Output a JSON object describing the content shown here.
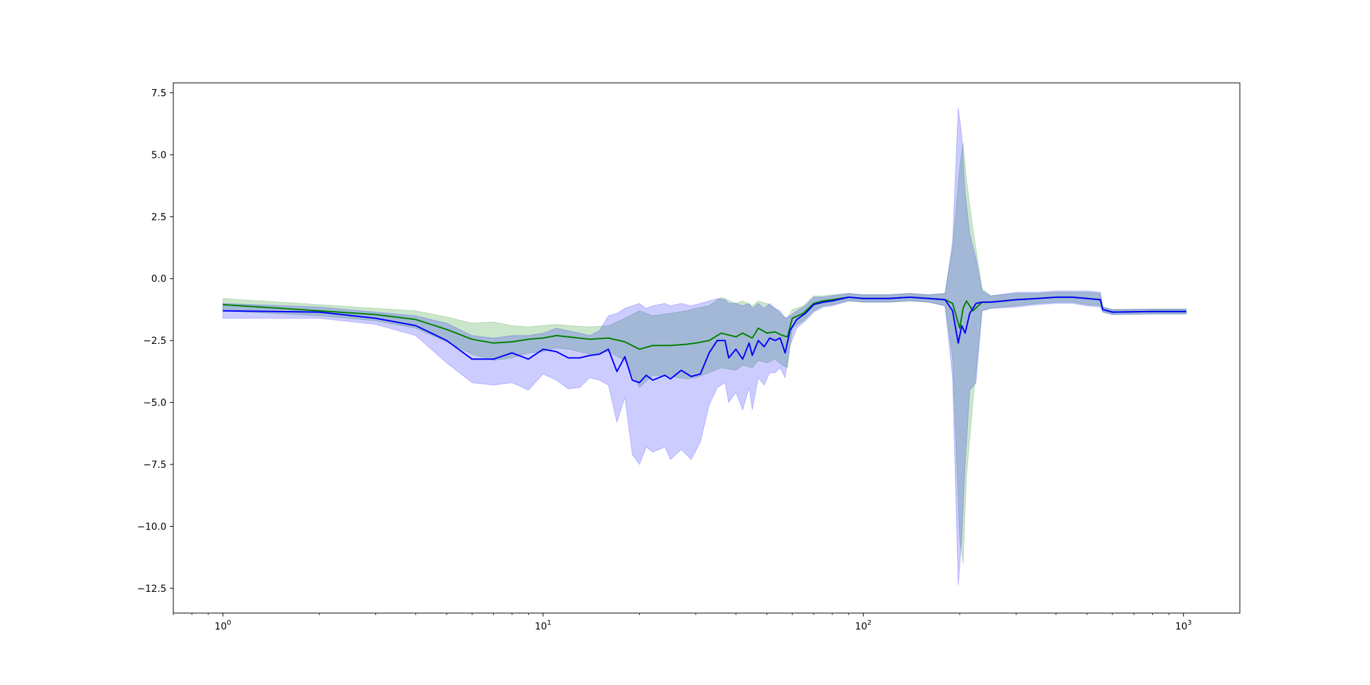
{
  "chart_data": {
    "type": "line",
    "title": "",
    "xlabel": "",
    "ylabel": "",
    "xscale": "log",
    "xlim": [
      0.7,
      1500
    ],
    "ylim": [
      -13.5,
      7.9
    ],
    "grid": false,
    "x_ticks": [
      {
        "base": "10",
        "exp": "0",
        "value": 1
      },
      {
        "base": "10",
        "exp": "1",
        "value": 10
      },
      {
        "base": "10",
        "exp": "2",
        "value": 100
      },
      {
        "base": "10",
        "exp": "3",
        "value": 1000
      }
    ],
    "y_ticks": [
      {
        "label": "7.5",
        "value": 7.5
      },
      {
        "label": "5.0",
        "value": 5.0
      },
      {
        "label": "2.5",
        "value": 2.5
      },
      {
        "label": "0.0",
        "value": 0.0
      },
      {
        "label": "−2.5",
        "value": -2.5
      },
      {
        "label": "−5.0",
        "value": -5.0
      },
      {
        "label": "−7.5",
        "value": -7.5
      },
      {
        "label": "−10.0",
        "value": -10.0
      },
      {
        "label": "−12.5",
        "value": -12.5
      }
    ],
    "series": [
      {
        "color": "#008000",
        "band_color": "#008000",
        "band_opacity": 0.2,
        "points": [
          [
            1,
            -1.05,
            -0.8,
            -1.3
          ],
          [
            2,
            -1.3,
            -1.05,
            -1.5
          ],
          [
            3,
            -1.45,
            -1.2,
            -1.7
          ],
          [
            4,
            -1.65,
            -1.3,
            -2.0
          ],
          [
            5,
            -2.05,
            -1.55,
            -2.55
          ],
          [
            6,
            -2.45,
            -1.8,
            -3.05
          ],
          [
            7,
            -2.6,
            -1.75,
            -3.3
          ],
          [
            8,
            -2.55,
            -1.9,
            -3.2
          ],
          [
            9,
            -2.45,
            -1.95,
            -3.0
          ],
          [
            10,
            -2.4,
            -1.9,
            -2.95
          ],
          [
            11,
            -2.3,
            -1.85,
            -2.8
          ],
          [
            12,
            -2.35,
            -1.9,
            -2.85
          ],
          [
            14,
            -2.45,
            -1.95,
            -3.05
          ],
          [
            16,
            -2.4,
            -1.9,
            -2.95
          ],
          [
            18,
            -2.55,
            -1.6,
            -3.3
          ],
          [
            20,
            -2.85,
            -1.3,
            -4.4
          ],
          [
            22,
            -2.7,
            -1.5,
            -3.9
          ],
          [
            25,
            -2.7,
            -1.4,
            -3.95
          ],
          [
            28,
            -2.65,
            -1.3,
            -4.05
          ],
          [
            30,
            -2.6,
            -1.2,
            -4.0
          ],
          [
            33,
            -2.5,
            -1.1,
            -3.8
          ],
          [
            36,
            -2.2,
            -0.75,
            -3.6
          ],
          [
            40,
            -2.35,
            -1.0,
            -3.7
          ],
          [
            42,
            -2.2,
            -0.9,
            -3.5
          ],
          [
            45,
            -2.4,
            -1.1,
            -3.6
          ],
          [
            47,
            -2.0,
            -0.9,
            -3.3
          ],
          [
            50,
            -2.2,
            -1.0,
            -3.4
          ],
          [
            53,
            -2.15,
            -1.2,
            -3.25
          ],
          [
            56,
            -2.3,
            -1.5,
            -3.5
          ],
          [
            58,
            -2.35,
            -1.6,
            -3.6
          ],
          [
            60,
            -1.6,
            -1.25,
            -2.0
          ],
          [
            65,
            -1.4,
            -1.1,
            -1.7
          ],
          [
            70,
            -1.0,
            -0.7,
            -1.3
          ],
          [
            75,
            -0.9,
            -0.7,
            -1.1
          ],
          [
            80,
            -0.85,
            -0.65,
            -1.05
          ],
          [
            90,
            -0.75,
            -0.6,
            -0.9
          ],
          [
            100,
            -0.8,
            -0.65,
            -0.95
          ],
          [
            120,
            -0.8,
            -0.65,
            -0.95
          ],
          [
            140,
            -0.75,
            -0.6,
            -0.9
          ],
          [
            160,
            -0.8,
            -0.65,
            -0.95
          ],
          [
            180,
            -0.85,
            -0.6,
            -1.1
          ],
          [
            190,
            -1.0,
            1.2,
            -3.2
          ],
          [
            200,
            -2.0,
            4.5,
            -10.5
          ],
          [
            205,
            -1.2,
            5.5,
            -11.5
          ],
          [
            210,
            -0.9,
            4.0,
            -8.0
          ],
          [
            220,
            -1.3,
            2.0,
            -5.0
          ],
          [
            235,
            -0.95,
            -0.4,
            -1.3
          ],
          [
            250,
            -0.95,
            -0.7,
            -1.2
          ],
          [
            300,
            -0.85,
            -0.6,
            -1.1
          ],
          [
            350,
            -0.8,
            -0.6,
            -1.0
          ],
          [
            400,
            -0.75,
            -0.55,
            -0.95
          ],
          [
            450,
            -0.75,
            -0.55,
            -0.95
          ],
          [
            500,
            -0.8,
            -0.55,
            -1.05
          ],
          [
            550,
            -0.85,
            -0.6,
            -1.1
          ],
          [
            560,
            -1.25,
            -1.15,
            -1.35
          ],
          [
            600,
            -1.35,
            -1.25,
            -1.45
          ],
          [
            800,
            -1.33,
            -1.23,
            -1.43
          ],
          [
            1020,
            -1.33,
            -1.23,
            -1.43
          ]
        ]
      },
      {
        "color": "#0000ff",
        "band_color": "#0000ff",
        "band_opacity": 0.2,
        "points": [
          [
            1,
            -1.3,
            -1.0,
            -1.6
          ],
          [
            2,
            -1.35,
            -1.15,
            -1.6
          ],
          [
            3,
            -1.6,
            -1.35,
            -1.85
          ],
          [
            4,
            -1.9,
            -1.5,
            -2.3
          ],
          [
            5,
            -2.5,
            -1.8,
            -3.4
          ],
          [
            6,
            -3.25,
            -2.3,
            -4.2
          ],
          [
            7,
            -3.25,
            -2.4,
            -4.3
          ],
          [
            8,
            -3.0,
            -2.3,
            -4.2
          ],
          [
            9,
            -3.25,
            -2.3,
            -4.5
          ],
          [
            10,
            -2.85,
            -2.2,
            -3.85
          ],
          [
            11,
            -2.95,
            -2.0,
            -4.1
          ],
          [
            12,
            -3.2,
            -2.1,
            -4.45
          ],
          [
            13,
            -3.2,
            -2.2,
            -4.4
          ],
          [
            14,
            -3.1,
            -2.3,
            -4.0
          ],
          [
            15,
            -3.05,
            -2.1,
            -4.1
          ],
          [
            16,
            -2.85,
            -1.5,
            -4.3
          ],
          [
            17,
            -3.75,
            -1.4,
            -5.8
          ],
          [
            18,
            -3.15,
            -1.2,
            -4.8
          ],
          [
            19,
            -4.1,
            -1.1,
            -7.1
          ],
          [
            20,
            -4.2,
            -1.0,
            -7.5
          ],
          [
            21,
            -3.9,
            -1.2,
            -6.8
          ],
          [
            22,
            -4.1,
            -1.1,
            -7.0
          ],
          [
            24,
            -3.9,
            -1.0,
            -6.8
          ],
          [
            25,
            -4.05,
            -1.1,
            -7.3
          ],
          [
            27,
            -3.7,
            -1.0,
            -6.9
          ],
          [
            29,
            -3.95,
            -1.1,
            -7.3
          ],
          [
            31,
            -3.85,
            -1.0,
            -6.6
          ],
          [
            33,
            -3.0,
            -0.9,
            -5.1
          ],
          [
            35,
            -2.5,
            -0.8,
            -4.4
          ],
          [
            37,
            -2.5,
            -0.85,
            -4.2
          ],
          [
            38,
            -3.2,
            -1.0,
            -5.0
          ],
          [
            40,
            -2.85,
            -1.0,
            -4.6
          ],
          [
            42,
            -3.25,
            -1.1,
            -5.3
          ],
          [
            44,
            -2.6,
            -1.0,
            -4.4
          ],
          [
            45,
            -3.1,
            -1.2,
            -5.3
          ],
          [
            47,
            -2.5,
            -1.0,
            -4.0
          ],
          [
            49,
            -2.75,
            -1.2,
            -4.3
          ],
          [
            51,
            -2.4,
            -1.0,
            -3.8
          ],
          [
            53,
            -2.5,
            -1.2,
            -3.8
          ],
          [
            55,
            -2.4,
            -1.3,
            -3.6
          ],
          [
            57,
            -3.0,
            -1.6,
            -4.0
          ],
          [
            59,
            -2.1,
            -1.5,
            -2.7
          ],
          [
            62,
            -1.65,
            -1.3,
            -2.0
          ],
          [
            66,
            -1.4,
            -1.1,
            -1.7
          ],
          [
            70,
            -1.05,
            -0.75,
            -1.35
          ],
          [
            75,
            -0.95,
            -0.75,
            -1.15
          ],
          [
            80,
            -0.9,
            -0.7,
            -1.1
          ],
          [
            90,
            -0.75,
            -0.6,
            -0.9
          ],
          [
            100,
            -0.8,
            -0.65,
            -0.95
          ],
          [
            120,
            -0.8,
            -0.65,
            -0.95
          ],
          [
            140,
            -0.75,
            -0.6,
            -0.9
          ],
          [
            160,
            -0.8,
            -0.65,
            -0.95
          ],
          [
            180,
            -0.85,
            -0.6,
            -1.1
          ],
          [
            190,
            -1.3,
            1.5,
            -4.0
          ],
          [
            198,
            -2.6,
            6.9,
            -12.4
          ],
          [
            203,
            -1.9,
            5.8,
            -10.5
          ],
          [
            208,
            -2.2,
            3.5,
            -7.5
          ],
          [
            215,
            -1.4,
            1.8,
            -4.5
          ],
          [
            225,
            -1.0,
            0.8,
            -4.2
          ],
          [
            235,
            -0.95,
            -0.5,
            -1.3
          ],
          [
            250,
            -0.95,
            -0.7,
            -1.2
          ],
          [
            300,
            -0.85,
            -0.55,
            -1.15
          ],
          [
            350,
            -0.8,
            -0.55,
            -1.05
          ],
          [
            400,
            -0.75,
            -0.5,
            -1.0
          ],
          [
            450,
            -0.75,
            -0.5,
            -1.0
          ],
          [
            500,
            -0.8,
            -0.5,
            -1.1
          ],
          [
            550,
            -0.85,
            -0.55,
            -1.15
          ],
          [
            560,
            -1.25,
            -1.15,
            -1.35
          ],
          [
            600,
            -1.35,
            -1.25,
            -1.45
          ],
          [
            800,
            -1.33,
            -1.23,
            -1.43
          ],
          [
            1020,
            -1.33,
            -1.23,
            -1.43
          ]
        ]
      }
    ]
  }
}
